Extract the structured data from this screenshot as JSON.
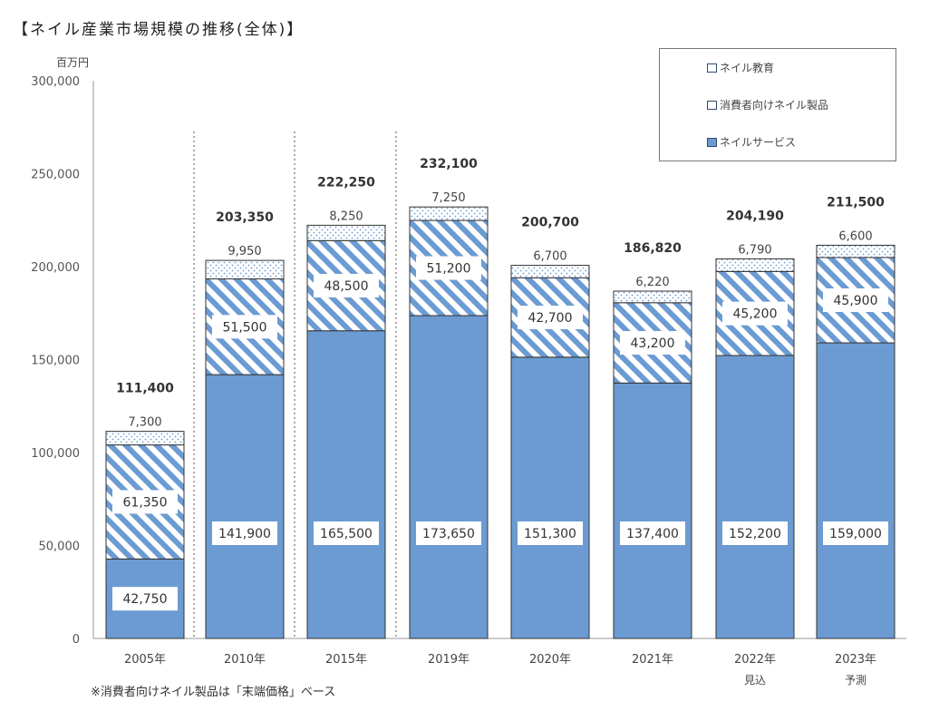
{
  "chart_data": {
    "type": "bar",
    "stacked": true,
    "title": "【ネイル産業市場規模の推移(全体)】",
    "ylabel": "百万円",
    "ylim": [
      0,
      300000
    ],
    "yticks": [
      0,
      50000,
      100000,
      150000,
      200000,
      250000,
      300000
    ],
    "ytick_labels": [
      "0",
      "50,000",
      "100,000",
      "150,000",
      "200,000",
      "250,000",
      "300,000"
    ],
    "categories": [
      "2005年",
      "2010年",
      "2015年",
      "2019年",
      "2020年",
      "2021年",
      "2022年",
      "2023年"
    ],
    "category_sublabels": [
      "",
      "",
      "",
      "",
      "",
      "",
      "見込",
      "予測"
    ],
    "series": [
      {
        "name": "ネイルサービス",
        "values": [
          42750,
          141900,
          165500,
          173650,
          151300,
          137400,
          152200,
          159000
        ],
        "labels": [
          "42,750",
          "141,900",
          "165,500",
          "173,650",
          "151,300",
          "137,400",
          "152,200",
          "159,000"
        ],
        "color": "#6b9bd2",
        "pattern": "solid"
      },
      {
        "name": "消費者向けネイル製品",
        "values": [
          61350,
          51500,
          48500,
          51200,
          42700,
          43200,
          45200,
          45900
        ],
        "labels": [
          "61,350",
          "51,500",
          "48,500",
          "51,200",
          "42,700",
          "43,200",
          "45,200",
          "45,900"
        ],
        "color": "#6b9bd2",
        "pattern": "diagonal-stripes"
      },
      {
        "name": "ネイル教育",
        "values": [
          7300,
          9950,
          8250,
          7250,
          6700,
          6220,
          6790,
          6600
        ],
        "labels": [
          "7,300",
          "9,950",
          "8,250",
          "7,250",
          "6,700",
          "6,220",
          "6,790",
          "6,600"
        ],
        "color": "#6b9bd2",
        "pattern": "dots"
      }
    ],
    "totals": [
      111400,
      203350,
      222250,
      232100,
      200700,
      186820,
      204190,
      211500
    ],
    "total_labels": [
      "111,400",
      "203,350",
      "222,250",
      "232,100",
      "200,700",
      "186,820",
      "204,190",
      "211,500"
    ],
    "legend_position": "top-right",
    "legend_order": [
      "ネイル教育",
      "消費者向けネイル製品",
      "ネイルサービス"
    ],
    "grid": false,
    "note": "※消費者向けネイル製品は「末端価格」ベース"
  }
}
